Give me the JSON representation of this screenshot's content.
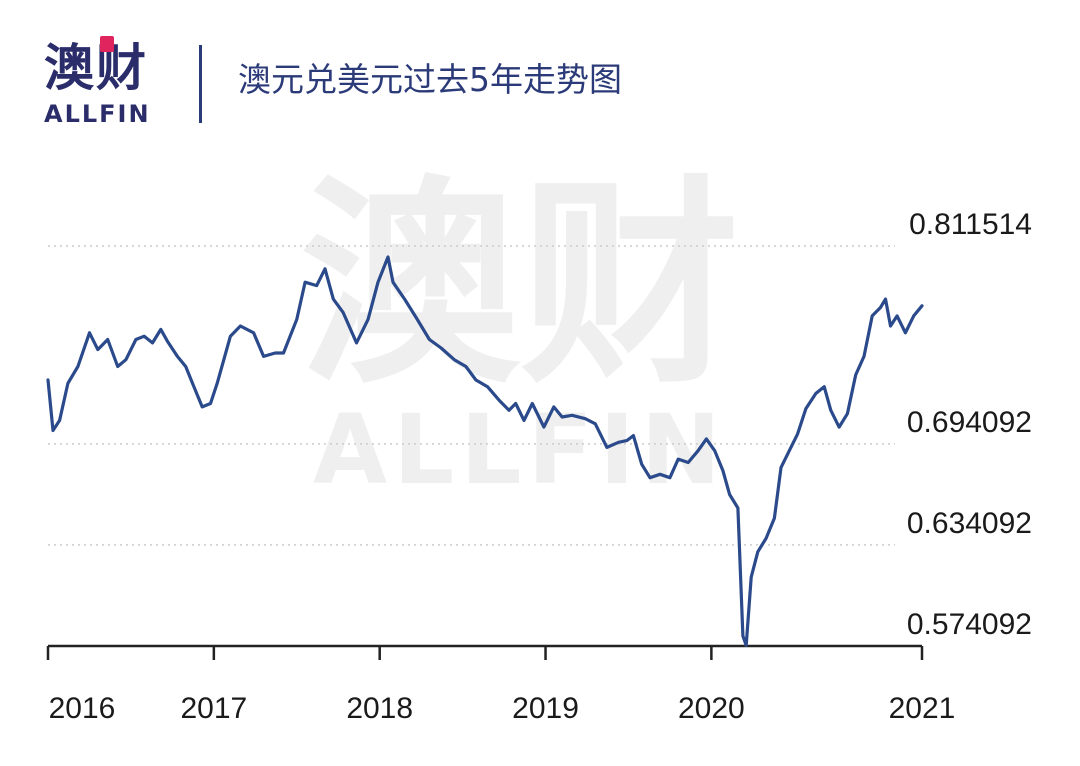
{
  "logo": {
    "cn": "澳财",
    "en": "ALLFIN"
  },
  "title": "澳元兑美元过去5年走势图",
  "watermark": {
    "cn": "澳财",
    "en": "ALLFIN"
  },
  "colors": {
    "line": "#2b4a8b",
    "text": "#1a1a1a",
    "grid": "#cccccc",
    "brand": "#2b2d6b",
    "accent": "#e0245e"
  },
  "chart_data": {
    "type": "line",
    "title": "澳元兑美元过去5年走势图",
    "xlabel": "",
    "ylabel": "",
    "x_ticks": [
      "2016",
      "2017",
      "2018",
      "2019",
      "2020",
      "2021"
    ],
    "y_ticks": [
      "0.811514",
      "0.694092",
      "0.634092",
      "0.574092"
    ],
    "ylim": [
      0.574092,
      0.811514
    ],
    "grid": "horizontal dotted",
    "series": [
      {
        "values": [
          [
            2016.0,
            0.732
          ],
          [
            2016.03,
            0.702
          ],
          [
            2016.07,
            0.708
          ],
          [
            2016.12,
            0.73
          ],
          [
            2016.18,
            0.74
          ],
          [
            2016.25,
            0.76
          ],
          [
            2016.3,
            0.75
          ],
          [
            2016.36,
            0.756
          ],
          [
            2016.42,
            0.74
          ],
          [
            2016.47,
            0.744
          ],
          [
            2016.53,
            0.756
          ],
          [
            2016.58,
            0.758
          ],
          [
            2016.63,
            0.754
          ],
          [
            2016.68,
            0.762
          ],
          [
            2016.72,
            0.755
          ],
          [
            2016.78,
            0.746
          ],
          [
            2016.83,
            0.74
          ],
          [
            2016.88,
            0.728
          ],
          [
            2016.93,
            0.716
          ],
          [
            2016.98,
            0.718
          ],
          [
            2017.02,
            0.73
          ],
          [
            2017.1,
            0.758
          ],
          [
            2017.16,
            0.764
          ],
          [
            2017.24,
            0.76
          ],
          [
            2017.3,
            0.746
          ],
          [
            2017.37,
            0.748
          ],
          [
            2017.42,
            0.748
          ],
          [
            2017.5,
            0.768
          ],
          [
            2017.55,
            0.79
          ],
          [
            2017.62,
            0.788
          ],
          [
            2017.67,
            0.798
          ],
          [
            2017.72,
            0.78
          ],
          [
            2017.78,
            0.772
          ],
          [
            2017.86,
            0.754
          ],
          [
            2017.93,
            0.768
          ],
          [
            2017.99,
            0.79
          ],
          [
            2018.05,
            0.805
          ],
          [
            2018.08,
            0.79
          ],
          [
            2018.15,
            0.78
          ],
          [
            2018.22,
            0.769
          ],
          [
            2018.3,
            0.756
          ],
          [
            2018.37,
            0.751
          ],
          [
            2018.45,
            0.744
          ],
          [
            2018.52,
            0.74
          ],
          [
            2018.58,
            0.732
          ],
          [
            2018.65,
            0.728
          ],
          [
            2018.72,
            0.72
          ],
          [
            2018.78,
            0.714
          ],
          [
            2018.82,
            0.718
          ],
          [
            2018.87,
            0.708
          ],
          [
            2018.92,
            0.718
          ],
          [
            2018.99,
            0.704
          ],
          [
            2019.05,
            0.716
          ],
          [
            2019.1,
            0.71
          ],
          [
            2019.16,
            0.711
          ],
          [
            2019.24,
            0.709
          ],
          [
            2019.3,
            0.706
          ],
          [
            2019.37,
            0.692
          ],
          [
            2019.44,
            0.695
          ],
          [
            2019.49,
            0.696
          ],
          [
            2019.53,
            0.699
          ],
          [
            2019.58,
            0.682
          ],
          [
            2019.63,
            0.674
          ],
          [
            2019.69,
            0.676
          ],
          [
            2019.75,
            0.674
          ],
          [
            2019.8,
            0.685
          ],
          [
            2019.86,
            0.683
          ],
          [
            2019.92,
            0.69
          ],
          [
            2019.97,
            0.697
          ],
          [
            2020.02,
            0.69
          ],
          [
            2020.07,
            0.678
          ],
          [
            2020.11,
            0.664
          ],
          [
            2020.16,
            0.656
          ],
          [
            2020.19,
            0.58
          ],
          [
            2020.21,
            0.5745
          ],
          [
            2020.24,
            0.615
          ],
          [
            2020.28,
            0.63
          ],
          [
            2020.33,
            0.638
          ],
          [
            2020.38,
            0.65
          ],
          [
            2020.42,
            0.68
          ],
          [
            2020.47,
            0.69
          ],
          [
            2020.52,
            0.7
          ],
          [
            2020.57,
            0.715
          ],
          [
            2020.63,
            0.724
          ],
          [
            2020.68,
            0.728
          ],
          [
            2020.72,
            0.714
          ],
          [
            2020.77,
            0.704
          ],
          [
            2020.82,
            0.712
          ],
          [
            2020.87,
            0.735
          ],
          [
            2020.92,
            0.746
          ],
          [
            2020.97,
            0.77
          ],
          [
            2021.02,
            0.775
          ],
          [
            2021.05,
            0.78
          ],
          [
            2021.08,
            0.764
          ],
          [
            2021.12,
            0.77
          ],
          [
            2021.17,
            0.76
          ],
          [
            2021.22,
            0.77
          ],
          [
            2021.27,
            0.776
          ]
        ]
      }
    ]
  }
}
